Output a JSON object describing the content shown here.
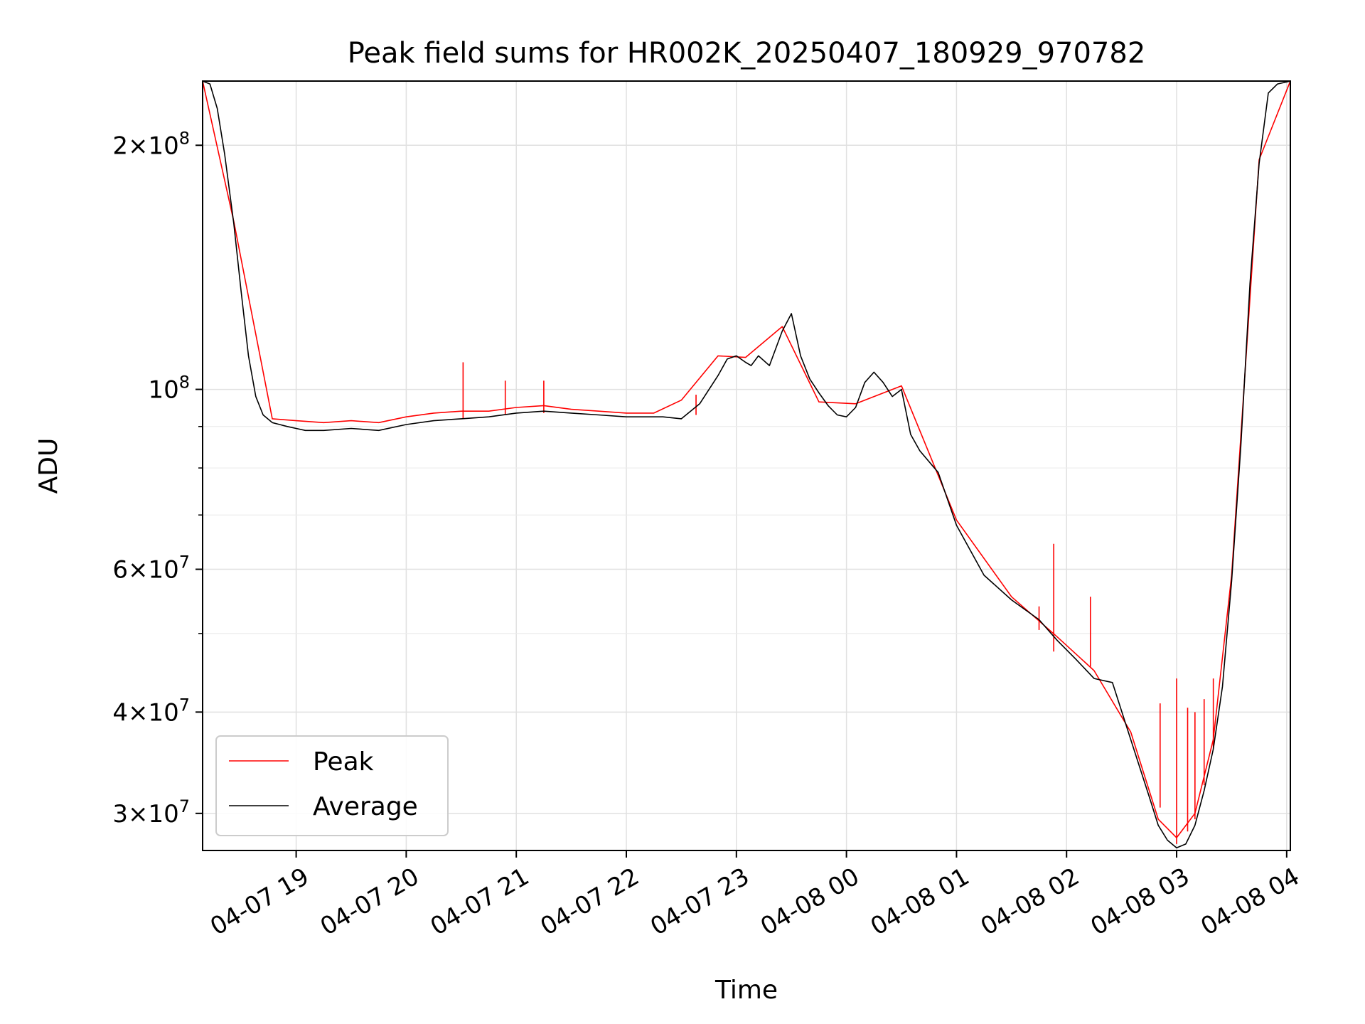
{
  "chart_data": {
    "type": "line",
    "title": "Peak field sums for HR002K_20250407_180929_970782",
    "xlabel": "Time",
    "ylabel": "ADU",
    "xscale": "time",
    "yscale": "log",
    "xlim": [
      "2025-04-07 18:09",
      "2025-04-08 04:02"
    ],
    "ylim": [
      27000000,
      240000000
    ],
    "grid": true,
    "legend_position": "lower-left",
    "x_ticks": [
      "04-07 19",
      "04-07 20",
      "04-07 21",
      "04-07 22",
      "04-07 23",
      "04-08 00",
      "04-08 01",
      "04-08 02",
      "04-08 03",
      "04-08 04"
    ],
    "y_ticks": [
      {
        "value": 30000000,
        "base": "3",
        "exp": "7"
      },
      {
        "value": 40000000,
        "base": "4",
        "exp": "7"
      },
      {
        "value": 60000000,
        "base": "6",
        "exp": "7"
      },
      {
        "value": 100000000,
        "base": "",
        "exp": "8"
      },
      {
        "value": 200000000,
        "base": "2",
        "exp": "8"
      }
    ],
    "y_minor_ticks": [
      50000000,
      70000000,
      80000000,
      90000000
    ],
    "series": [
      {
        "name": "Average",
        "color": "#000000",
        "x": [
          "2025-04-07 18:09",
          "2025-04-07 18:13",
          "2025-04-07 18:17",
          "2025-04-07 18:21",
          "2025-04-07 18:26",
          "2025-04-07 18:30",
          "2025-04-07 18:34",
          "2025-04-07 18:38",
          "2025-04-07 18:42",
          "2025-04-07 18:47",
          "2025-04-07 18:51",
          "2025-04-07 18:55",
          "2025-04-07 19:00",
          "2025-04-07 19:05",
          "2025-04-07 19:15",
          "2025-04-07 19:30",
          "2025-04-07 19:45",
          "2025-04-07 20:00",
          "2025-04-07 20:15",
          "2025-04-07 20:30",
          "2025-04-07 20:45",
          "2025-04-07 21:00",
          "2025-04-07 21:15",
          "2025-04-07 21:30",
          "2025-04-07 21:45",
          "2025-04-07 22:00",
          "2025-04-07 22:15",
          "2025-04-07 22:20",
          "2025-04-07 22:30",
          "2025-04-07 22:40",
          "2025-04-07 22:50",
          "2025-04-07 22:55",
          "2025-04-07 23:00",
          "2025-04-07 23:05",
          "2025-04-07 23:08",
          "2025-04-07 23:12",
          "2025-04-07 23:18",
          "2025-04-07 23:25",
          "2025-04-07 23:30",
          "2025-04-07 23:35",
          "2025-04-07 23:40",
          "2025-04-07 23:45",
          "2025-04-07 23:50",
          "2025-04-07 23:55",
          "2025-04-08 00:00",
          "2025-04-08 00:05",
          "2025-04-08 00:10",
          "2025-04-08 00:15",
          "2025-04-08 00:20",
          "2025-04-08 00:25",
          "2025-04-08 00:30",
          "2025-04-08 00:35",
          "2025-04-08 00:40",
          "2025-04-08 00:50",
          "2025-04-08 01:00",
          "2025-04-08 01:15",
          "2025-04-08 01:30",
          "2025-04-08 01:45",
          "2025-04-08 01:55",
          "2025-04-08 02:05",
          "2025-04-08 02:15",
          "2025-04-08 02:25",
          "2025-04-08 02:35",
          "2025-04-08 02:45",
          "2025-04-08 02:50",
          "2025-04-08 02:55",
          "2025-04-08 03:00",
          "2025-04-08 03:05",
          "2025-04-08 03:10",
          "2025-04-08 03:15",
          "2025-04-08 03:20",
          "2025-04-08 03:25",
          "2025-04-08 03:30",
          "2025-04-08 03:35",
          "2025-04-08 03:40",
          "2025-04-08 03:45",
          "2025-04-08 03:50",
          "2025-04-08 03:55",
          "2025-04-08 04:02"
        ],
        "values": [
          240000000,
          238000000,
          222000000,
          195000000,
          160000000,
          132000000,
          110000000,
          98000000,
          93000000,
          91000000,
          90500000,
          90000000,
          89500000,
          89000000,
          89000000,
          89500000,
          89000000,
          90500000,
          91500000,
          92000000,
          92500000,
          93500000,
          94000000,
          93500000,
          93000000,
          92500000,
          92500000,
          92500000,
          92000000,
          96000000,
          104000000,
          109000000,
          110000000,
          108000000,
          107000000,
          110000000,
          107000000,
          118000000,
          124000000,
          110000000,
          103000000,
          99000000,
          95500000,
          93000000,
          92500000,
          95000000,
          102000000,
          105000000,
          102000000,
          98000000,
          100000000,
          88000000,
          84000000,
          79000000,
          68000000,
          59000000,
          55000000,
          52000000,
          49000000,
          46500000,
          44000000,
          43500000,
          37000000,
          31500000,
          29000000,
          27800000,
          27200000,
          27500000,
          29000000,
          32000000,
          36000000,
          43000000,
          58000000,
          85000000,
          135000000,
          190000000,
          232000000,
          238000000,
          240000000
        ]
      },
      {
        "name": "Peak",
        "color": "#ff0000",
        "x": [
          "2025-04-07 18:09",
          "2025-04-07 18:26",
          "2025-04-07 18:47",
          "2025-04-07 19:00",
          "2025-04-07 19:15",
          "2025-04-07 19:30",
          "2025-04-07 19:45",
          "2025-04-07 20:00",
          "2025-04-07 20:15",
          "2025-04-07 20:30",
          "2025-04-07 20:45",
          "2025-04-07 21:00",
          "2025-04-07 21:15",
          "2025-04-07 21:30",
          "2025-04-07 21:45",
          "2025-04-07 22:00",
          "2025-04-07 22:15",
          "2025-04-07 22:30",
          "2025-04-07 22:50",
          "2025-04-07 23:05",
          "2025-04-07 23:25",
          "2025-04-07 23:45",
          "2025-04-08 00:05",
          "2025-04-08 00:30",
          "2025-04-08 01:00",
          "2025-04-08 01:30",
          "2025-04-08 01:55",
          "2025-04-08 02:15",
          "2025-04-08 02:35",
          "2025-04-08 02:50",
          "2025-04-08 03:00",
          "2025-04-08 03:10",
          "2025-04-08 03:20",
          "2025-04-08 03:30",
          "2025-04-08 03:45",
          "2025-04-08 04:02"
        ],
        "values": [
          240000000,
          161000000,
          92000000,
          91500000,
          91000000,
          91500000,
          91000000,
          92500000,
          93500000,
          94000000,
          94000000,
          95000000,
          95500000,
          94500000,
          94000000,
          93500000,
          93500000,
          97000000,
          110000000,
          109500000,
          119500000,
          96500000,
          96000000,
          101000000,
          69000000,
          55500000,
          49500000,
          45000000,
          37800000,
          29500000,
          28000000,
          30000000,
          37000000,
          59000000,
          192000000,
          240000000
        ]
      }
    ],
    "spikes": [
      {
        "x": "2025-04-07 20:31",
        "peak": 108000000,
        "base": 92000000
      },
      {
        "x": "2025-04-07 20:54",
        "peak": 102500000,
        "base": 93000000
      },
      {
        "x": "2025-04-07 21:15",
        "peak": 102500000,
        "base": 93500000
      },
      {
        "x": "2025-04-07 22:38",
        "peak": 98500000,
        "base": 93000000
      },
      {
        "x": "2025-04-08 01:45",
        "peak": 54000000,
        "base": 50500000
      },
      {
        "x": "2025-04-08 01:53",
        "peak": 64500000,
        "base": 47500000
      },
      {
        "x": "2025-04-08 02:13",
        "peak": 55500000,
        "base": 45500000
      },
      {
        "x": "2025-04-08 02:51",
        "peak": 41000000,
        "base": 30500000
      },
      {
        "x": "2025-04-08 03:00",
        "peak": 44000000,
        "base": 27500000
      },
      {
        "x": "2025-04-08 03:06",
        "peak": 40500000,
        "base": 28500000
      },
      {
        "x": "2025-04-08 03:10",
        "peak": 40000000,
        "base": 29500000
      },
      {
        "x": "2025-04-08 03:15",
        "peak": 41500000,
        "base": 32500000
      },
      {
        "x": "2025-04-08 03:20",
        "peak": 44000000,
        "base": 36000000
      }
    ]
  },
  "legend": {
    "items": [
      {
        "label": "Peak",
        "color": "#ff0000"
      },
      {
        "label": "Average",
        "color": "#000000"
      }
    ]
  }
}
